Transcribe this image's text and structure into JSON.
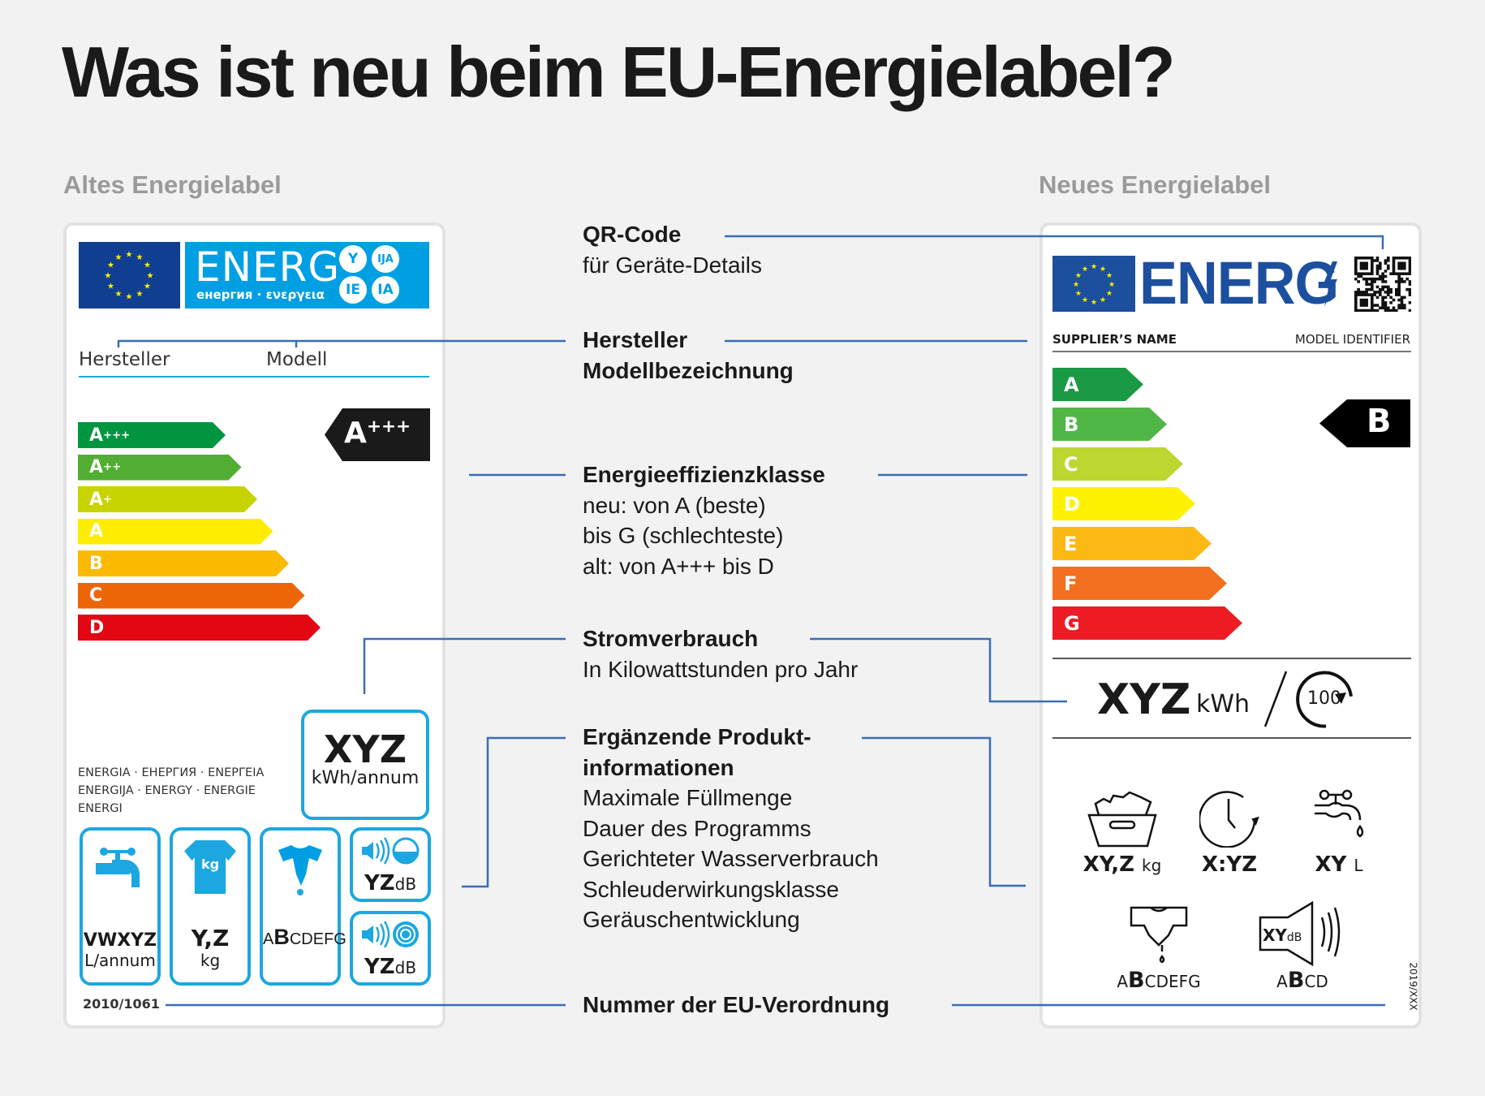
{
  "title": "Was ist neu beim EU-Energielabel?",
  "old_label": {
    "heading": "Altes Energielabel",
    "logo_text": "ENERG",
    "logo_sub": "енергия · ενεργεια",
    "logo_badges": [
      "Y",
      "IJA",
      "IE",
      "IA"
    ],
    "manufacturer": "Hersteller",
    "model": "Modell",
    "classes": [
      {
        "base": "A",
        "plus": "+++",
        "color": "#009640"
      },
      {
        "base": "A",
        "plus": "++",
        "color": "#52ae32"
      },
      {
        "base": "A",
        "plus": "+",
        "color": "#c8d400"
      },
      {
        "base": "A",
        "plus": "",
        "color": "#ffed00"
      },
      {
        "base": "B",
        "plus": "",
        "color": "#fbba00"
      },
      {
        "base": "C",
        "plus": "",
        "color": "#ec6608"
      },
      {
        "base": "D",
        "plus": "",
        "color": "#e30613"
      }
    ],
    "current_class": {
      "base": "A",
      "plus": "+++"
    },
    "energy_value": "XYZ",
    "energy_unit": "kWh/annum",
    "languages": [
      "ENERGIA · ЕНЕРГИЯ · ΕΝΕΡΓΕΙΑ",
      "ENERGIJA · ENERGY · ENERGIE",
      "ENERGI"
    ],
    "water_value": "VWXYZ",
    "water_unit": "L/annum",
    "capacity_value": "Y,Z",
    "capacity_unit": "kg",
    "capacity_icon_text": "kg",
    "spin_scale": {
      "pre": "A",
      "mid": "B",
      "post": "CDEFG"
    },
    "noise_wash": {
      "value": "YZ",
      "unit": "dB"
    },
    "noise_spin": {
      "value": "YZ",
      "unit": "dB"
    },
    "regulation": "2010/1061",
    "accent": "#1ca7e0"
  },
  "new_label": {
    "heading": "Neues Energielabel",
    "logo_text": "ENERG",
    "supplier": "SUPPLIER’S NAME",
    "model": "MODEL IDENTIFIER",
    "classes": [
      {
        "label": "A",
        "color": "#1a9a44"
      },
      {
        "label": "B",
        "color": "#50b747"
      },
      {
        "label": "C",
        "color": "#bed630"
      },
      {
        "label": "D",
        "color": "#fff200"
      },
      {
        "label": "E",
        "color": "#fdb913"
      },
      {
        "label": "F",
        "color": "#f37021"
      },
      {
        "label": "G",
        "color": "#ed1c24"
      }
    ],
    "current_class": "B",
    "energy_value": "XYZ",
    "energy_unit": "kWh",
    "cycles": "100",
    "capacity": {
      "value": "XY,Z",
      "unit": "kg"
    },
    "duration": {
      "value": "X:YZ"
    },
    "water": {
      "value": "XY",
      "unit": "L"
    },
    "spin_scale": {
      "pre": "A",
      "mid": "B",
      "post": "CDEFG"
    },
    "noise_scale": {
      "pre": "A",
      "mid": "B",
      "post": "CD"
    },
    "noise_icon": {
      "value": "XY",
      "unit": "dB"
    },
    "regulation": "2019/XXX",
    "brand_blue": "#1d4f9f"
  },
  "annotations": {
    "qr": {
      "title": "QR-Code",
      "lines": [
        "für Geräte-Details"
      ]
    },
    "manufacturer": {
      "title": "Hersteller",
      "lines": [
        "Modellbezeichnung"
      ]
    },
    "efficiency": {
      "title": "Energieeffizienzklasse",
      "lines": [
        "neu: von A (beste)",
        "bis G (schlechteste)",
        "alt: von A+++ bis D"
      ]
    },
    "consumption": {
      "title": "Stromverbrauch",
      "lines": [
        "In Kilowattstunden pro Jahr"
      ]
    },
    "extra": {
      "title": [
        "Ergänzende Produkt-",
        "informationen"
      ],
      "lines": [
        "Maximale Füllmenge",
        "Dauer des Programms",
        "Gerichteter Wasserverbrauch",
        "Schleuderwirkungsklasse",
        "Geräuschentwicklung"
      ]
    },
    "regulation": {
      "title": "Nummer der EU-Verordnung"
    },
    "line_color": "#3a6db5"
  }
}
